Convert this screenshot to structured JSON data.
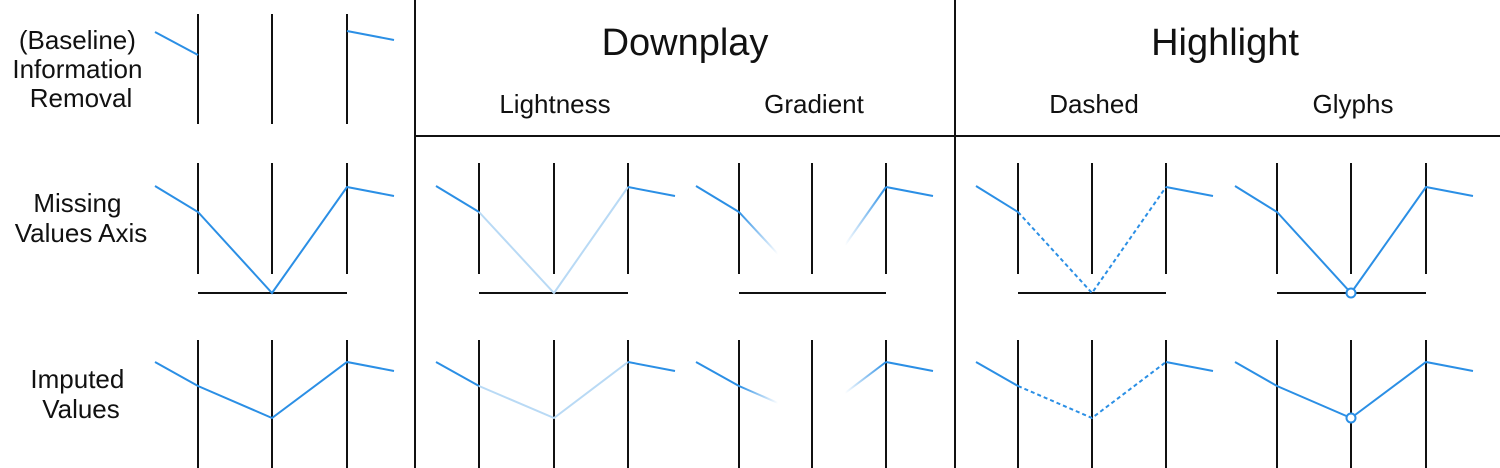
{
  "headers": {
    "downplay": "Downplay",
    "highlight": "Highlight",
    "downplay_color": "#cccccc",
    "highlight_color": "#2b8fe5"
  },
  "columns": {
    "lightness": "Lightness",
    "gradient": "Gradient",
    "dashed": "Dashed",
    "glyphs": "Glyphs"
  },
  "rows": {
    "baseline": [
      "(Baseline)",
      "Information",
      "Removal"
    ],
    "missing_axis": [
      "Missing",
      "Values Axis"
    ],
    "imputed": [
      "Imputed",
      "Values"
    ]
  },
  "colors": {
    "line": "#2b8fe5",
    "light_line": "#b9daf5",
    "axis": "#111111"
  }
}
